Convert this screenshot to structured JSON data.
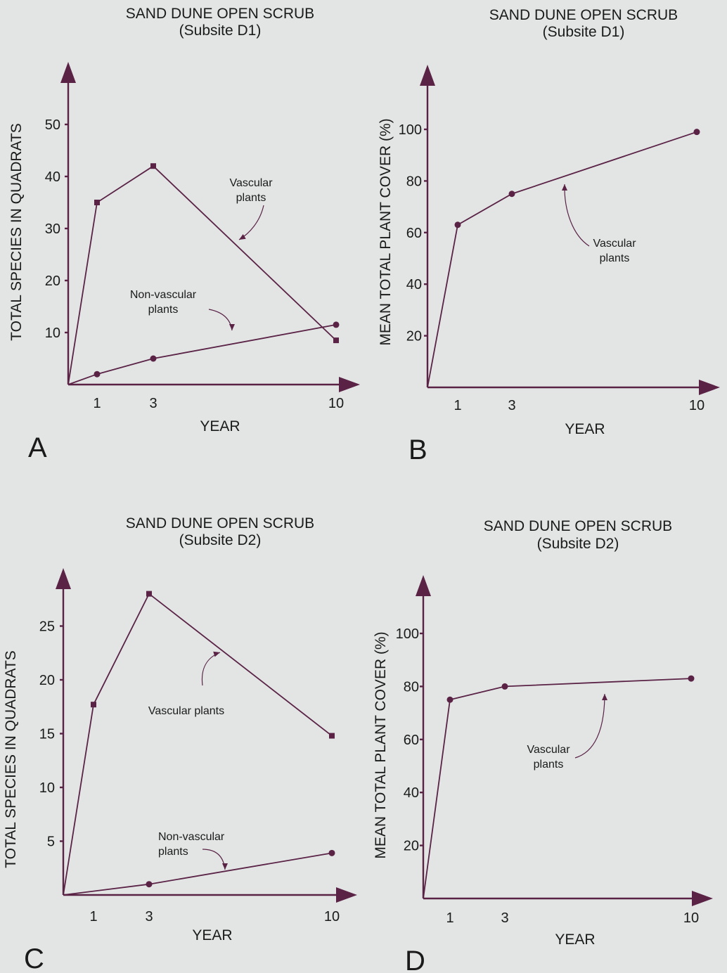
{
  "chart_data": [
    {
      "panel": "A",
      "type": "line",
      "title": "SAND DUNE OPEN SCRUB",
      "subtitle": "(Subsite D1)",
      "xlabel": "YEAR",
      "ylabel": "TOTAL SPECIES IN QUADRATS",
      "x_ticks": [
        "1",
        "3",
        "10"
      ],
      "y_ticks": [
        "10",
        "20",
        "30",
        "40",
        "50"
      ],
      "ylim": [
        0,
        55
      ],
      "series": [
        {
          "name": "Vascular plants",
          "marker": "square",
          "x": [
            0,
            1,
            3,
            10
          ],
          "y": [
            0,
            35,
            42,
            8.5
          ]
        },
        {
          "name": "Non-vascular plants",
          "marker": "circle",
          "x": [
            0,
            1,
            3,
            10
          ],
          "y": [
            0,
            2,
            5,
            11.5
          ]
        }
      ],
      "annotations": [
        {
          "lines": [
            "Vascular",
            "plants"
          ]
        },
        {
          "lines": [
            "Non-vascular",
            "plants"
          ]
        }
      ]
    },
    {
      "panel": "B",
      "type": "line",
      "title": "SAND DUNE OPEN SCRUB",
      "subtitle": "(Subsite D1)",
      "xlabel": "YEAR",
      "ylabel": "MEAN TOTAL PLANT COVER (%)",
      "x_ticks": [
        "1",
        "3",
        "10"
      ],
      "y_ticks": [
        "20",
        "40",
        "60",
        "80",
        "100"
      ],
      "ylim": [
        0,
        115
      ],
      "series": [
        {
          "name": "Vascular plants",
          "marker": "circle",
          "x": [
            0,
            1,
            3,
            10
          ],
          "y": [
            0,
            63,
            75,
            99
          ]
        }
      ],
      "annotations": [
        {
          "lines": [
            "Vascular",
            "plants"
          ]
        }
      ]
    },
    {
      "panel": "C",
      "type": "line",
      "title": "SAND DUNE OPEN SCRUB",
      "subtitle": "(Subsite D2)",
      "xlabel": "YEAR",
      "ylabel": "TOTAL SPECIES IN QUADRATS",
      "x_ticks": [
        "1",
        "3",
        "10"
      ],
      "y_ticks": [
        "5",
        "10",
        "15",
        "20",
        "25"
      ],
      "ylim": [
        0,
        30
      ],
      "series": [
        {
          "name": "Vascular plants",
          "marker": "square",
          "x": [
            0,
            1,
            3,
            10
          ],
          "y": [
            0,
            17.7,
            28,
            14.8
          ]
        },
        {
          "name": "Non-vascular plants",
          "marker": "circle",
          "x": [
            0,
            3,
            10
          ],
          "y": [
            0,
            1,
            3.9
          ]
        }
      ],
      "annotations": [
        {
          "lines": [
            "Vascular plants"
          ]
        },
        {
          "lines": [
            "Non-vascular",
            "plants"
          ]
        }
      ]
    },
    {
      "panel": "D",
      "type": "line",
      "title": "SAND DUNE OPEN SCRUB",
      "subtitle": "(Subsite D2)",
      "xlabel": "YEAR",
      "ylabel": "MEAN TOTAL PLANT COVER (%)",
      "x_ticks": [
        "1",
        "3",
        "10"
      ],
      "y_ticks": [
        "20",
        "40",
        "60",
        "80",
        "100"
      ],
      "ylim": [
        0,
        115
      ],
      "series": [
        {
          "name": "Vascular plants",
          "marker": "circle",
          "x": [
            0,
            1,
            3,
            10
          ],
          "y": [
            0,
            75,
            80,
            83
          ]
        }
      ],
      "annotations": [
        {
          "lines": [
            "Vascular",
            "plants"
          ]
        }
      ]
    }
  ],
  "colors": {
    "line": "#5a2346",
    "background": "#e3e5e5",
    "text": "#1a1a1a"
  }
}
